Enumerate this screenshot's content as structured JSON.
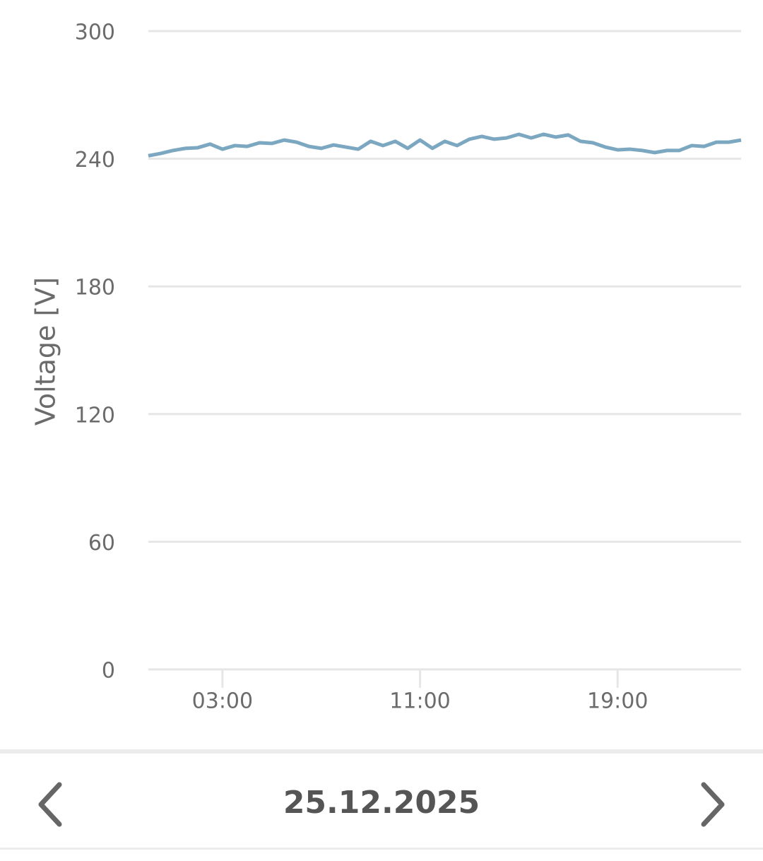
{
  "chart_data": {
    "type": "line",
    "y_label": "Voltage [V]",
    "x": [
      0,
      0.5,
      1,
      1.5,
      2,
      2.5,
      3,
      3.5,
      4,
      4.5,
      5,
      5.5,
      6,
      6.5,
      7,
      7.5,
      8,
      8.5,
      9,
      9.5,
      10,
      10.5,
      11,
      11.5,
      12,
      12.5,
      13,
      13.5,
      14,
      14.5,
      15,
      15.5,
      16,
      16.5,
      17,
      17.5,
      18,
      18.5,
      19,
      19.5,
      20,
      20.5,
      21,
      21.5,
      22,
      22.5,
      23,
      23.5,
      24
    ],
    "series": [
      {
        "color": "#7ba7c0",
        "values": [
          241.4,
          242.5,
          243.9,
          244.9,
          245.2,
          246.9,
          244.5,
          246.2,
          245.8,
          247.5,
          247.2,
          248.8,
          247.8,
          245.8,
          244.9,
          246.5,
          245.5,
          244.5,
          248.2,
          246.2,
          248.2,
          244.9,
          248.8,
          244.9,
          248.2,
          246.2,
          249.2,
          250.5,
          249.2,
          249.8,
          251.5,
          249.8,
          251.5,
          250.2,
          251.2,
          248.2,
          247.5,
          245.5,
          244.2,
          244.5,
          243.9,
          242.9,
          243.9,
          243.9,
          246.2,
          245.8,
          247.8,
          247.8,
          248.8
        ]
      }
    ],
    "xlim": [
      0,
      24
    ],
    "xticks": [
      {
        "value": 3,
        "label": "03:00"
      },
      {
        "value": 11,
        "label": "11:00"
      },
      {
        "value": 19,
        "label": "19:00"
      }
    ],
    "ylim": [
      0,
      300
    ],
    "yticks": [
      0,
      60,
      120,
      180,
      240,
      300
    ],
    "grid": true
  },
  "date_nav": {
    "date": "25.12.2025"
  }
}
